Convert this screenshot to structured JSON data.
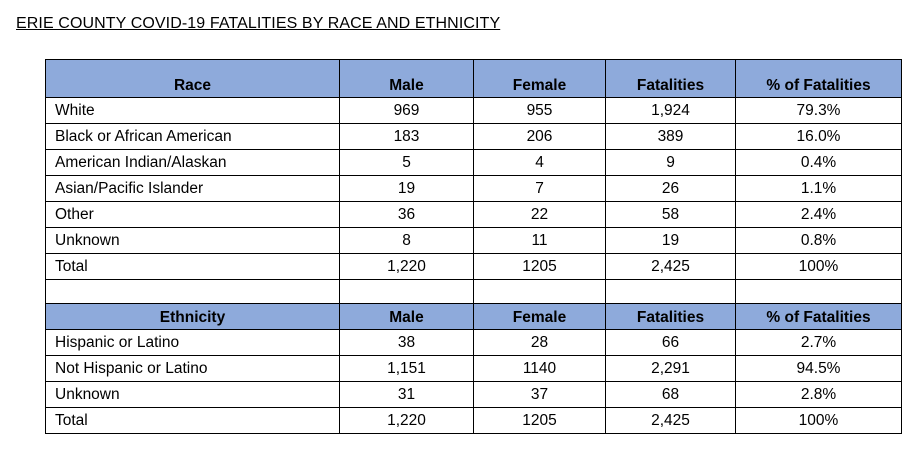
{
  "title": "ERIE COUNTY COVID-19 FATALITIES BY RACE AND ETHNICITY",
  "race_table": {
    "headers": [
      "Race",
      "Male",
      "Female",
      "Fatalities",
      "% of Fatalities"
    ],
    "rows": [
      [
        "White",
        "969",
        "955",
        "1,924",
        "79.3%"
      ],
      [
        "Black or African American",
        "183",
        "206",
        "389",
        "16.0%"
      ],
      [
        "American Indian/Alaskan",
        "5",
        "4",
        "9",
        "0.4%"
      ],
      [
        "Asian/Pacific Islander",
        "19",
        "7",
        "26",
        "1.1%"
      ],
      [
        "Other",
        "36",
        "22",
        "58",
        "2.4%"
      ],
      [
        "Unknown",
        "8",
        "11",
        "19",
        "0.8%"
      ],
      [
        "Total",
        "1,220",
        "1205",
        "2,425",
        "100%"
      ]
    ]
  },
  "ethnicity_table": {
    "headers": [
      "Ethnicity",
      "Male",
      "Female",
      "Fatalities",
      "% of Fatalities"
    ],
    "rows": [
      [
        "Hispanic or Latino",
        "38",
        "28",
        "66",
        "2.7%"
      ],
      [
        "Not Hispanic or Latino",
        "1,151",
        "1140",
        "2,291",
        "94.5%"
      ],
      [
        "Unknown",
        "31",
        "37",
        "68",
        "2.8%"
      ],
      [
        "Total",
        "1,220",
        "1205",
        "2,425",
        "100%"
      ]
    ]
  },
  "colors": {
    "header_fill": "#8eaadb",
    "border": "#000000"
  }
}
